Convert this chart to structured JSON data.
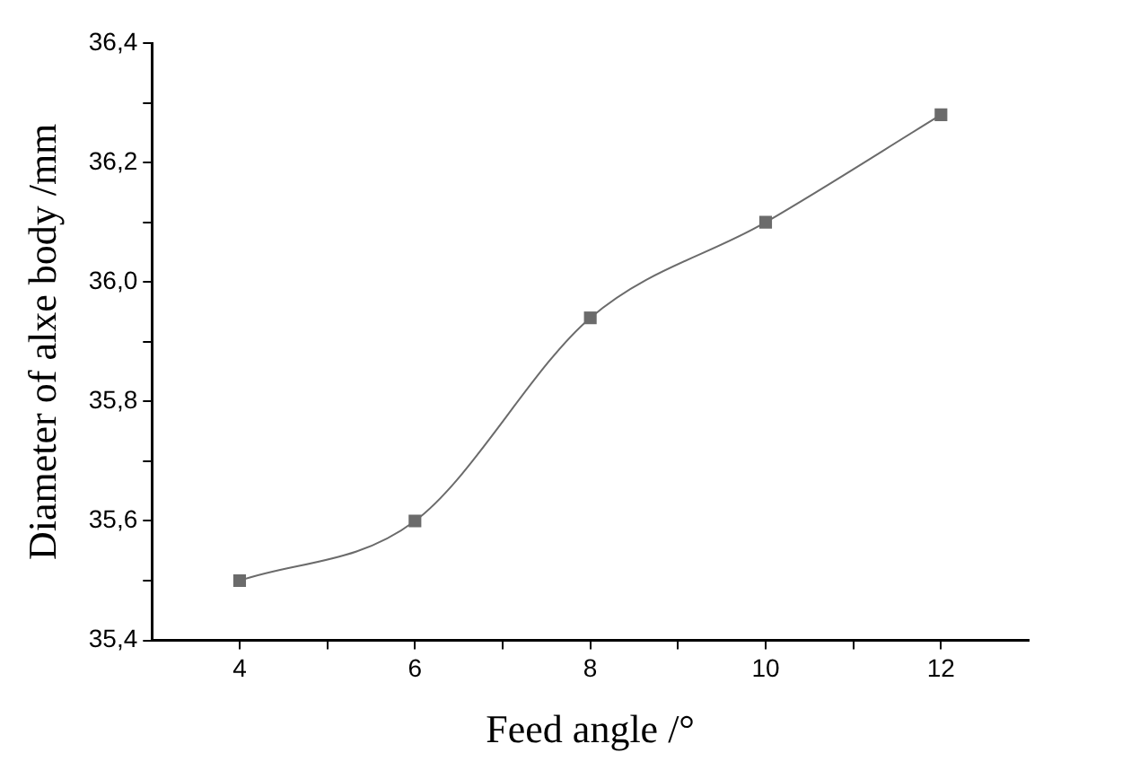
{
  "chart_data": {
    "type": "line",
    "xlabel": "Feed angle /°",
    "ylabel": "Diameter of alxe body /mm",
    "x": [
      4,
      6,
      8,
      10,
      12
    ],
    "series": [
      {
        "color": "#6b6b6b",
        "values": [
          35.5,
          35.6,
          35.94,
          36.1,
          36.28
        ]
      }
    ],
    "xlim": [
      3,
      13
    ],
    "xticks": [
      4,
      {
        "value": 5,
        "label": null
      },
      6,
      {
        "value": 7,
        "label": null
      },
      8,
      {
        "value": 9,
        "label": null
      },
      10,
      {
        "value": 11,
        "label": null
      },
      12
    ],
    "ylim": [
      35.4,
      36.4
    ],
    "yticks": [
      {
        "value": 35.4,
        "label": "35,4"
      },
      {
        "value": 35.5,
        "label": null
      },
      {
        "value": 35.6,
        "label": "35,6"
      },
      {
        "value": 35.7,
        "label": null
      },
      {
        "value": 35.8,
        "label": "35,8"
      },
      {
        "value": 35.9,
        "label": null
      },
      {
        "value": 36.0,
        "label": "36,0"
      },
      {
        "value": 36.1,
        "label": null
      },
      {
        "value": 36.2,
        "label": "36,2"
      },
      {
        "value": 36.3,
        "label": null
      },
      {
        "value": 36.4,
        "label": "36,4"
      }
    ],
    "grid": false,
    "legend": false,
    "marker": "square",
    "line_style": "solid"
  }
}
